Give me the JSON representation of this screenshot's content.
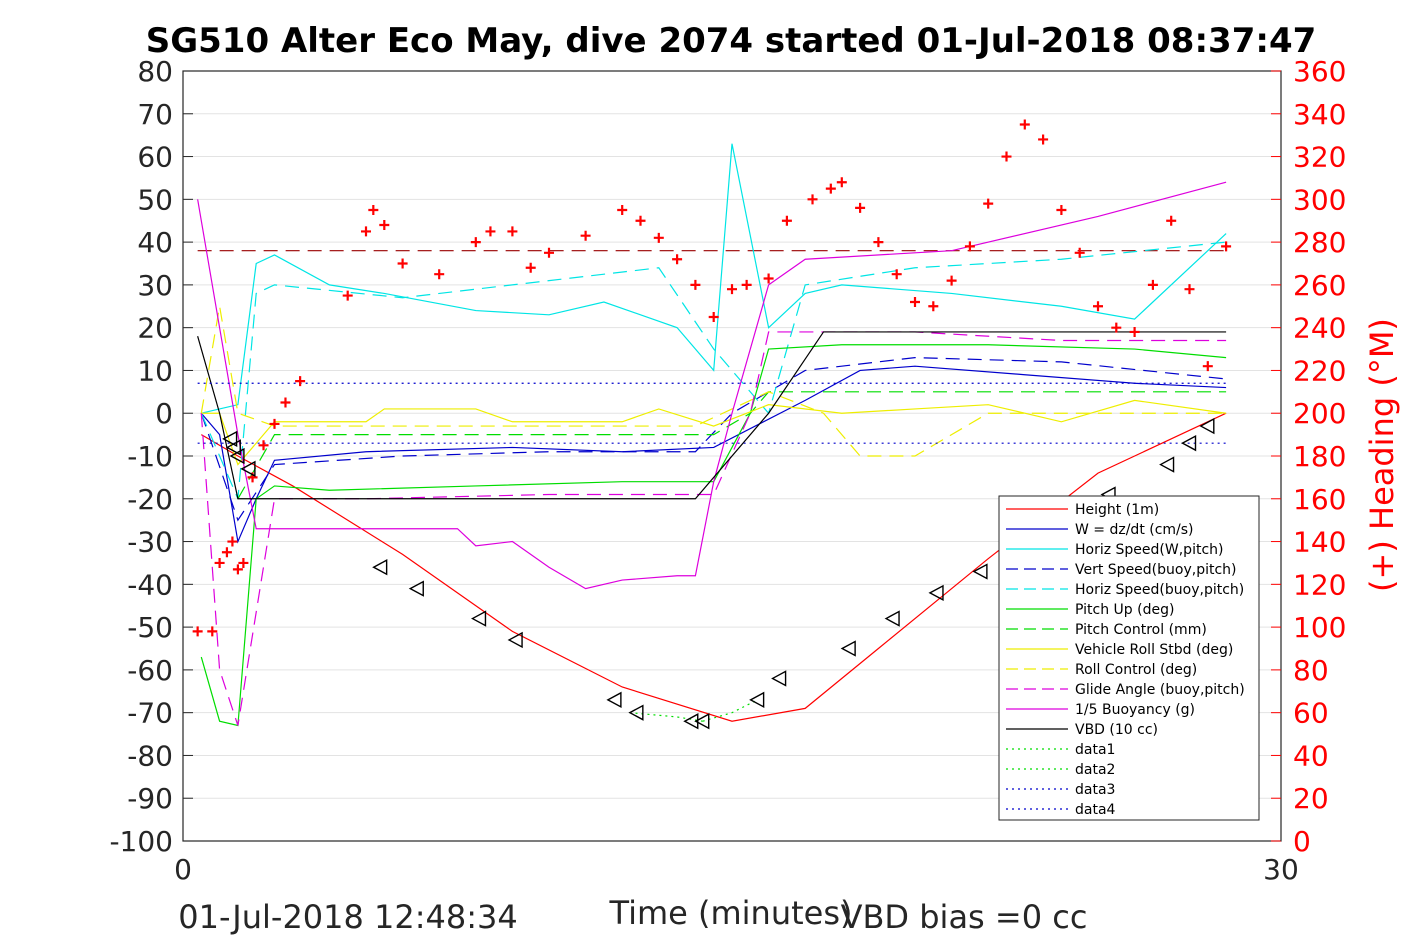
{
  "chart_data": {
    "type": "line",
    "title": "SG510 Alter Eco May, dive 2074 started 01-Jul-2018 08:37:47",
    "xlabel": "Time (minutes)",
    "ylabel_right": "(+) Heading (°M)",
    "xlim": [
      0,
      30
    ],
    "ylim": [
      -100,
      80
    ],
    "ylim_right": [
      0,
      360
    ],
    "x_ticks": [
      "0",
      "30"
    ],
    "y_ticks": [
      "80",
      "70",
      "60",
      "50",
      "40",
      "30",
      "20",
      "10",
      "0",
      "-10",
      "-20",
      "-30",
      "-40",
      "-50",
      "-60",
      "-70",
      "-80",
      "-90",
      "-100"
    ],
    "y_ticks_right": [
      "360",
      "340",
      "320",
      "300",
      "280",
      "260",
      "240",
      "220",
      "200",
      "180",
      "160",
      "140",
      "120",
      "100",
      "80",
      "60",
      "40",
      "20",
      "0"
    ],
    "footer_left": "01-Jul-2018 12:48:34",
    "footer_right": "VBD bias =0 cc",
    "grid": true,
    "legend_position": "lower-right",
    "colors": {
      "red": "#ff0000",
      "blue": "#0000cc",
      "cyan": "#00e5e5",
      "green": "#00dd00",
      "yellow": "#eeee00",
      "magenta": "#dd00dd",
      "black": "#000000",
      "darkred": "#990000"
    },
    "series": [
      {
        "name": "Height (1m)",
        "color": "#ff0000",
        "style": "solid",
        "x": [
          0.5,
          1.5,
          3,
          6,
          9,
          12,
          15,
          17,
          19,
          22,
          25,
          28.5
        ],
        "y": [
          -5,
          -10,
          -17,
          -33,
          -51,
          -64,
          -72,
          -69,
          -55,
          -34,
          -14,
          0
        ]
      },
      {
        "name": "W = dz/dt (cm/s)",
        "color": "#0000cc",
        "style": "solid",
        "x": [
          0.5,
          1,
          1.5,
          2,
          2.5,
          5,
          9,
          12,
          14.5,
          17,
          18.5,
          20,
          23,
          26,
          28.5
        ],
        "y": [
          0,
          -5,
          -30,
          -20,
          -11,
          -9,
          -8,
          -9,
          -8,
          3,
          10,
          11,
          9,
          7,
          6
        ]
      },
      {
        "name": "Horiz Speed(W,pitch)",
        "color": "#00e5e5",
        "style": "solid",
        "x": [
          0.5,
          1.5,
          2,
          2.5,
          4,
          5.5,
          8,
          10,
          11.5,
          13.5,
          14.5,
          15,
          16,
          17,
          18,
          21,
          24,
          26,
          28.5
        ],
        "y": [
          0,
          2,
          35,
          37,
          30,
          28,
          24,
          23,
          26,
          20,
          10,
          63,
          20,
          28,
          30,
          28,
          25,
          22,
          42
        ]
      },
      {
        "name": "Vert Speed(buoy,pitch)",
        "color": "#0000cc",
        "style": "dashed",
        "x": [
          0.5,
          1.5,
          2.5,
          6,
          10,
          14,
          15,
          17,
          20,
          24,
          28.5
        ],
        "y": [
          0,
          -25,
          -12,
          -10,
          -9,
          -9,
          0,
          10,
          13,
          12,
          8
        ]
      },
      {
        "name": "Horiz Speed(buoy,pitch)",
        "color": "#00e5e5",
        "style": "dashed",
        "x": [
          0.5,
          1.5,
          2,
          2.5,
          6,
          10,
          13,
          14.5,
          16,
          17,
          20,
          24,
          28.5
        ],
        "y": [
          0,
          -20,
          28,
          30,
          27,
          31,
          34,
          15,
          0,
          30,
          34,
          36,
          40
        ]
      },
      {
        "name": "Pitch Up (deg)",
        "color": "#00dd00",
        "style": "solid",
        "x": [
          0.5,
          1,
          1.5,
          2,
          2.5,
          4,
          8,
          12,
          14.5,
          15,
          15.5,
          16,
          18,
          22,
          26,
          28.5
        ],
        "y": [
          -57,
          -72,
          -73,
          -20,
          -17,
          -18,
          -17,
          -16,
          -16,
          -8,
          0,
          15,
          16,
          16,
          15,
          13
        ]
      },
      {
        "name": "Pitch Control (mm)",
        "color": "#00dd00",
        "style": "dashed",
        "x": [
          1.5,
          2.5,
          12,
          14.5,
          15.5,
          16,
          28.5
        ],
        "y": [
          -20,
          -5,
          -5,
          -5,
          0,
          5,
          5
        ]
      },
      {
        "name": "Vehicle Roll Stbd (deg)",
        "color": "#eeee00",
        "style": "solid",
        "x": [
          0.5,
          1,
          1.5,
          2.5,
          5,
          5.5,
          8,
          9,
          12,
          13,
          14.5,
          16,
          18,
          20,
          22,
          24,
          26,
          28.5
        ],
        "y": [
          0,
          0,
          -12,
          -2,
          -2,
          1,
          1,
          -2,
          -2,
          1,
          -3,
          2,
          0,
          1,
          2,
          -2,
          3,
          0
        ]
      },
      {
        "name": "Roll Control (deg)",
        "color": "#eeee00",
        "style": "dashed",
        "x": [
          0.5,
          1,
          1.5,
          2.5,
          10,
          14,
          16,
          17.5,
          18.5,
          20,
          22,
          28.5
        ],
        "y": [
          0,
          25,
          0,
          -3,
          -3,
          -3,
          5,
          0,
          -10,
          -10,
          0,
          0
        ]
      },
      {
        "name": "Glide Angle (buoy,pitch)",
        "color": "#dd00dd",
        "style": "dashed",
        "x": [
          0.5,
          1,
          1.5,
          2.5,
          5,
          10,
          14.5,
          15.5,
          16,
          20,
          24,
          28.5
        ],
        "y": [
          0,
          -60,
          -73,
          -20,
          -20,
          -19,
          -19,
          0,
          19,
          19,
          17,
          17
        ]
      },
      {
        "name": "1/5 Buoyancy (g)",
        "color": "#dd00dd",
        "style": "solid",
        "x": [
          0.4,
          1,
          1.5,
          2,
          2.5,
          5,
          7.5,
          8,
          9,
          10,
          11,
          12,
          13.5,
          14,
          14.5,
          15,
          16,
          17,
          21,
          25,
          28.5
        ],
        "y": [
          50,
          20,
          -5,
          -27,
          -27,
          -27,
          -27,
          -31,
          -30,
          -36,
          -41,
          -39,
          -38,
          -38,
          -16,
          0,
          30,
          36,
          38,
          46,
          54
        ]
      },
      {
        "name": "VBD (10 cc)",
        "color": "#000000",
        "style": "solid",
        "x": [
          0.4,
          1,
          1.5,
          2.5,
          5,
          10,
          12.5,
          14,
          16,
          17.5,
          20,
          24,
          28.5
        ],
        "y": [
          18,
          0,
          -20,
          -20,
          -20,
          -20,
          -20,
          -20,
          0,
          19,
          19,
          19,
          19
        ]
      },
      {
        "name": "data1",
        "color": "#00dd00",
        "style": "dotted",
        "x": [
          12.2,
          13.5,
          14.2
        ],
        "y": [
          -70,
          -71,
          -72
        ]
      },
      {
        "name": "data2",
        "color": "#00dd00",
        "style": "dotted",
        "x": [
          14.2,
          15,
          15.7
        ],
        "y": [
          -72,
          -70,
          -67
        ]
      },
      {
        "name": "data3",
        "color": "#0000cc",
        "style": "dotted",
        "x": [
          0.4,
          28.5
        ],
        "y": [
          7,
          7
        ]
      },
      {
        "name": "data4",
        "color": "#0000cc",
        "style": "dotted",
        "x": [
          0.4,
          28.5
        ],
        "y": [
          -7,
          -7
        ]
      }
    ],
    "reference_line": {
      "color": "#990000",
      "style": "dashed",
      "x": [
        0.4,
        28.5
      ],
      "y": [
        38,
        38
      ]
    },
    "triangle_markers": {
      "x": [
        1.3,
        1.4,
        1.5,
        1.8,
        5.4,
        6.4,
        8.1,
        9.1,
        11.8,
        12.4,
        13.9,
        14.2,
        15.7,
        16.3,
        18.2,
        19.4,
        20.6,
        21.8,
        22.9,
        24.3,
        25.3,
        26.9,
        27.5,
        28
      ],
      "y": [
        -6,
        -8,
        -10,
        -13,
        -36,
        -41,
        -48,
        -53,
        -67,
        -70,
        -72,
        -72,
        -67,
        -62,
        -55,
        -48,
        -42,
        -37,
        -31,
        -25,
        -19,
        -12,
        -7,
        -3
      ]
    },
    "heading_markers": {
      "x": [
        0.4,
        0.8,
        1,
        1.2,
        1.35,
        1.5,
        1.65,
        1.9,
        2.2,
        2.5,
        2.8,
        3.2,
        4.5,
        5,
        5.2,
        5.5,
        6,
        7,
        8,
        8.4,
        9,
        9.5,
        10,
        11,
        12,
        12.5,
        13,
        13.5,
        14,
        14.5,
        15,
        15.4,
        16,
        16.5,
        17.2,
        17.7,
        18,
        18.5,
        19,
        19.5,
        20,
        20.5,
        21,
        21.5,
        22,
        22.5,
        23,
        23.5,
        24,
        24.5,
        25,
        25.5,
        26,
        26.5,
        27,
        27.5,
        28,
        28.5
      ],
      "y": [
        98,
        98,
        130,
        135,
        140,
        127,
        130,
        170,
        185,
        195,
        205,
        215,
        255,
        285,
        295,
        288,
        270,
        265,
        280,
        285,
        285,
        268,
        275,
        283,
        295,
        290,
        282,
        272,
        260,
        245,
        258,
        260,
        263,
        290,
        300,
        305,
        308,
        296,
        280,
        265,
        252,
        250,
        262,
        278,
        298,
        320,
        335,
        328,
        295,
        275,
        250,
        240,
        238,
        260,
        290,
        258,
        222,
        278
      ]
    }
  }
}
